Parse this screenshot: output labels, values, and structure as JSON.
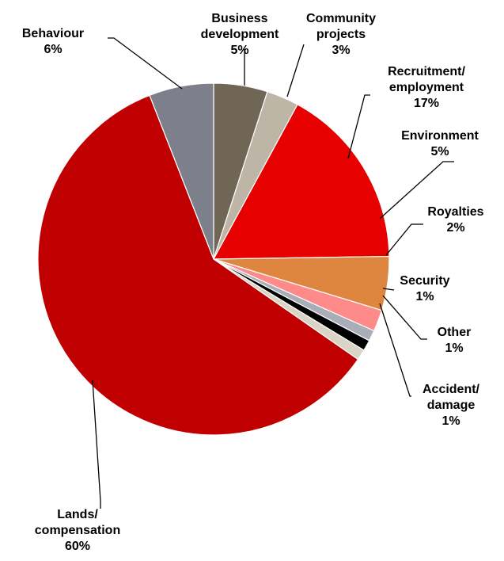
{
  "chart_data": {
    "type": "pie",
    "title": "",
    "start_angle_deg": 0,
    "direction": "clockwise",
    "slices": [
      {
        "label_lines": [
          "Business",
          "development"
        ],
        "percent_label": "5%",
        "value": 5,
        "color": "#6f6656"
      },
      {
        "label_lines": [
          "Community",
          "projects"
        ],
        "percent_label": "3%",
        "value": 3,
        "color": "#bdb6a6"
      },
      {
        "label_lines": [
          "Recruitment/",
          "employment"
        ],
        "percent_label": "17%",
        "value": 17,
        "color": "#e60000"
      },
      {
        "label_lines": [
          "Environment"
        ],
        "percent_label": "5%",
        "value": 5,
        "color": "#de8540"
      },
      {
        "label_lines": [
          "Royalties"
        ],
        "percent_label": "2%",
        "value": 2,
        "color": "#ff8a8a"
      },
      {
        "label_lines": [
          "Security"
        ],
        "percent_label": "1%",
        "value": 1,
        "color": "#a9adb7"
      },
      {
        "label_lines": [
          "Other"
        ],
        "percent_label": "1%",
        "value": 1,
        "color": "#000000"
      },
      {
        "label_lines": [
          "Accident/",
          "damage"
        ],
        "percent_label": "1%",
        "value": 1,
        "color": "#d9d4c6"
      },
      {
        "label_lines": [
          "Lands/",
          "compensation"
        ],
        "percent_label": "60%",
        "value": 60,
        "color": "#c00000"
      },
      {
        "label_lines": [
          "Behaviour"
        ],
        "percent_label": "6%",
        "value": 6,
        "color": "#7d808a"
      }
    ]
  }
}
